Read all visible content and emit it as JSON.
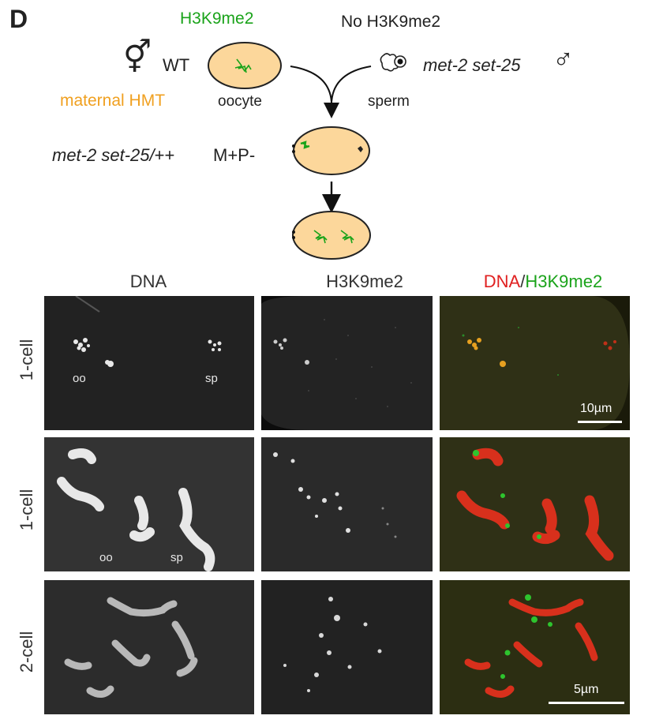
{
  "figure": {
    "panel_letter": "D",
    "schematic": {
      "top_green_label": "H3K9me2",
      "top_right_label": "No H3K9me2",
      "female_symbol": "⚥",
      "wt_label": "WT",
      "maternal_label": "maternal HMT",
      "oocyte_label": "oocyte",
      "sperm_label": "sperm",
      "mutant_label": "met-2 set-25",
      "male_symbol": "♂",
      "cross_label_italic": "met-2 set-25/",
      "cross_label_plus": "++",
      "mp_label": "M+P-"
    },
    "columns": {
      "dna": "DNA",
      "h3k9": "H3K9me2",
      "merge_dna": "DNA",
      "merge_slash": "/",
      "merge_h3k9": "H3K9me2"
    },
    "rows": [
      {
        "label": "1-cell",
        "oo": "oo",
        "sp": "sp",
        "scale": "10µm"
      },
      {
        "label": "1-cell",
        "oo": "oo",
        "sp": "sp"
      },
      {
        "label": "2-cell",
        "scale": "5µm"
      }
    ],
    "colors": {
      "embryo_fill": "#fcd79b",
      "embryo_stroke": "#222222",
      "green": "#1aa31a",
      "orange": "#f0a020",
      "red": "#e02020"
    }
  }
}
